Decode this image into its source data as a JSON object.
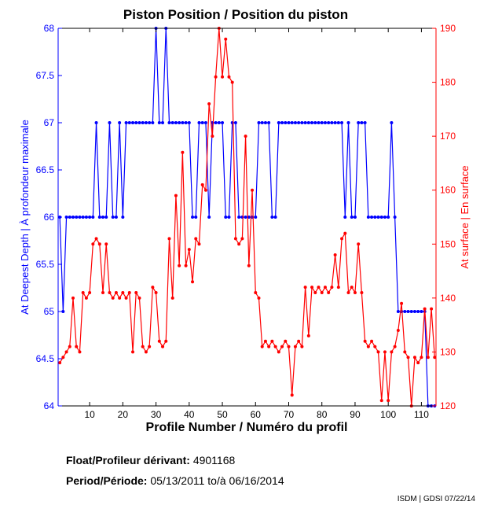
{
  "chart_data": {
    "type": "line",
    "title": "Piston Position / Position du piston",
    "xlabel": "Profile Number / Numéro du profil",
    "ylabel_left": "At Deepest Depth | À profondeur maximale",
    "ylabel_right": "At surface | En surface",
    "xlim": [
      0.5,
      114.4
    ],
    "ylim_left": [
      64,
      68
    ],
    "ylim_right": [
      120,
      190
    ],
    "xticks": [
      10,
      20,
      30,
      40,
      50,
      60,
      70,
      80,
      90,
      100,
      110
    ],
    "yticks_left": [
      "64",
      "64.5",
      "65",
      "65.5",
      "66",
      "66.5",
      "67",
      "67.5",
      "68"
    ],
    "yticks_right": [
      "120",
      "130",
      "140",
      "150",
      "160",
      "170",
      "180",
      "190"
    ],
    "grid": false,
    "series": [
      {
        "name": "At Deepest Depth",
        "axis": "left",
        "color": "#0000ff",
        "values": [
          66,
          65,
          66,
          66,
          66,
          66,
          66,
          66,
          66,
          66,
          66,
          67,
          66,
          66,
          66,
          67,
          66,
          66,
          67,
          66,
          67,
          67,
          67,
          67,
          67,
          67,
          67,
          67,
          67,
          68,
          67,
          67,
          68,
          67,
          67,
          67,
          67,
          67,
          67,
          67,
          66,
          66,
          67,
          67,
          67,
          66,
          67,
          67,
          67,
          67,
          66,
          66,
          67,
          67,
          66,
          66,
          66,
          66,
          66,
          66,
          67,
          67,
          67,
          67,
          66,
          66,
          67,
          67,
          67,
          67,
          67,
          67,
          67,
          67,
          67,
          67,
          67,
          67,
          67,
          67,
          67,
          67,
          67,
          67,
          67,
          67,
          66,
          67,
          66,
          66,
          67,
          67,
          67,
          66,
          66,
          66,
          66,
          66,
          66,
          66,
          67,
          66,
          65,
          65,
          65,
          65,
          65,
          65,
          65,
          65,
          65,
          64,
          64,
          64
        ]
      },
      {
        "name": "At surface",
        "axis": "right",
        "color": "#ff0000",
        "values": [
          128,
          129,
          130,
          131,
          140,
          131,
          130,
          141,
          140,
          141,
          150,
          151,
          150,
          141,
          150,
          141,
          140,
          141,
          140,
          141,
          140,
          141,
          130,
          141,
          140,
          131,
          130,
          131,
          142,
          141,
          132,
          131,
          132,
          151,
          140,
          159,
          146,
          167,
          146,
          149,
          143,
          151,
          150,
          161,
          160,
          176,
          170,
          181,
          190,
          181,
          188,
          181,
          180,
          151,
          150,
          151,
          170,
          146,
          160,
          141,
          140,
          131,
          132,
          131,
          132,
          131,
          130,
          131,
          132,
          131,
          122,
          131,
          132,
          131,
          142,
          133,
          142,
          141,
          142,
          141,
          142,
          141,
          142,
          148,
          142,
          151,
          152,
          141,
          142,
          141,
          150,
          141,
          132,
          131,
          132,
          131,
          130,
          121,
          130,
          121,
          130,
          131,
          134,
          139,
          130,
          129,
          120,
          129,
          128,
          129,
          138,
          129,
          138,
          129
        ]
      }
    ]
  },
  "info": {
    "float_label": "Float/Profileur dérivant:",
    "float_value": "4901168",
    "period_label": "Period/Période:",
    "period_start": "05/13/2011",
    "period_sep": "to/à",
    "period_end": "06/16/2014",
    "credit": "ISDM | GDSI 07/22/14"
  }
}
